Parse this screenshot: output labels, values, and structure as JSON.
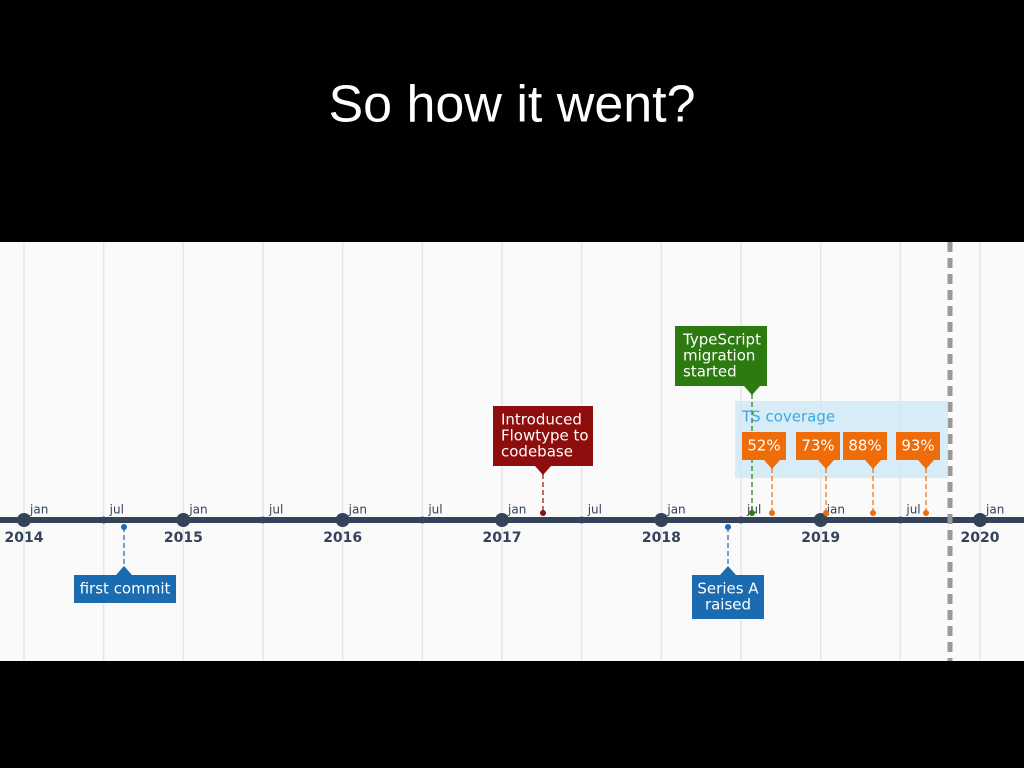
{
  "title": "So how it went?",
  "timeline": {
    "ticks": [
      {
        "month": "jan",
        "year": "2014"
      },
      {
        "month": "jul"
      },
      {
        "month": "jan",
        "year": "2015"
      },
      {
        "month": "jul"
      },
      {
        "month": "jan",
        "year": "2016"
      },
      {
        "month": "jul"
      },
      {
        "month": "jan",
        "year": "2017"
      },
      {
        "month": "jul"
      },
      {
        "month": "jan",
        "year": "2018"
      },
      {
        "month": "jul"
      },
      {
        "month": "jan",
        "year": "2019"
      },
      {
        "month": "jul"
      },
      {
        "month": "jan",
        "year": "2020"
      }
    ],
    "events": [
      {
        "lines": [
          "first commit"
        ]
      },
      {
        "lines": [
          "Series A",
          "raised"
        ]
      },
      {
        "lines": [
          "Introduced",
          "Flowtype to",
          "codebase"
        ]
      },
      {
        "lines": [
          "TypeScript",
          "migration",
          "started"
        ]
      }
    ],
    "coverage": {
      "label": "TS coverage",
      "points": [
        "52%",
        "73%",
        "88%",
        "93%"
      ]
    }
  }
}
